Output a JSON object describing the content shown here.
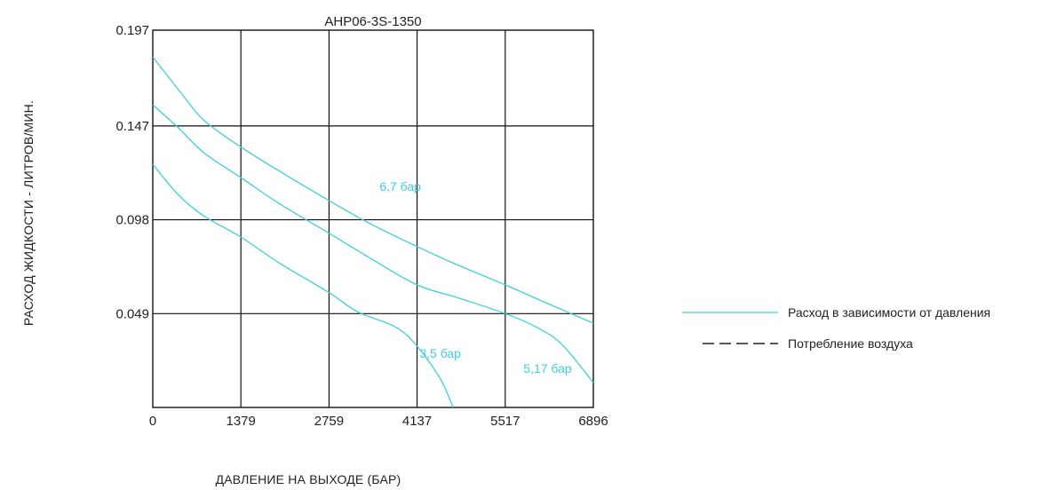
{
  "chart_data": {
    "type": "line",
    "title": "AHP06-3S-1350",
    "xlabel": "ДАВЛЕНИЕ НА ВЫХОДЕ (БАР)",
    "ylabel": "РАСХОД ЖИДКОСТИ - ЛИТРОВ/МИН.",
    "x_ticks": [
      "0",
      "1379",
      "2759",
      "4137",
      "5517",
      "6896"
    ],
    "y_ticks": [
      "0.049",
      "0.098",
      "0.147",
      "0.197"
    ],
    "xlim": [
      0,
      6896
    ],
    "ylim": [
      0,
      0.197
    ],
    "grid": true,
    "series_color": "#3fcfd8",
    "series": [
      {
        "name": "6,7 бар",
        "x": [
          0,
          400,
          800,
          1379,
          2000,
          2759,
          3400,
          4137,
          4800,
          5517,
          6200,
          6896
        ],
        "y": [
          0.183,
          0.166,
          0.15,
          0.136,
          0.123,
          0.108,
          0.096,
          0.084,
          0.074,
          0.064,
          0.054,
          0.044
        ]
      },
      {
        "name": "5,17 бар",
        "x": [
          0,
          400,
          800,
          1379,
          2000,
          2759,
          3400,
          4137,
          4800,
          5517,
          6000,
          6400,
          6896
        ],
        "y": [
          0.158,
          0.146,
          0.133,
          0.12,
          0.106,
          0.091,
          0.078,
          0.064,
          0.057,
          0.049,
          0.042,
          0.033,
          0.013
        ]
      },
      {
        "name": "3,5 бар",
        "x": [
          0,
          400,
          800,
          1379,
          2000,
          2759,
          3200,
          3800,
          4137,
          4500,
          4700
        ],
        "y": [
          0.127,
          0.111,
          0.1,
          0.089,
          0.075,
          0.06,
          0.05,
          0.042,
          0.032,
          0.015,
          0.0
        ]
      }
    ],
    "legend": {
      "position": "right",
      "entries": [
        {
          "label": "Расход в зависимости от давления",
          "style": "solid",
          "color": "#3fcfd8"
        },
        {
          "label": "Потребление воздуха",
          "style": "dashed",
          "color": "#222222"
        }
      ]
    }
  }
}
